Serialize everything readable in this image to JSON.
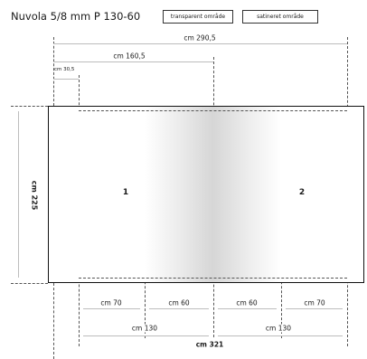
{
  "title": "Nuvola 5/8 mm P 130-60",
  "legend": {
    "transparent": "transparent område",
    "satin": "satineret område"
  },
  "dimensions": {
    "overall_top": "cm 290,5",
    "half_top": "cm 160,5",
    "offset_top": "cm 30,5",
    "height": "cm 225",
    "seg1": "cm 70",
    "seg2": "cm 60",
    "seg3": "cm 60",
    "seg4": "cm 70",
    "panel_left": "cm 130",
    "panel_right": "cm 130",
    "total_width": "cm 321"
  },
  "panels": {
    "left": "1",
    "right": "2"
  }
}
